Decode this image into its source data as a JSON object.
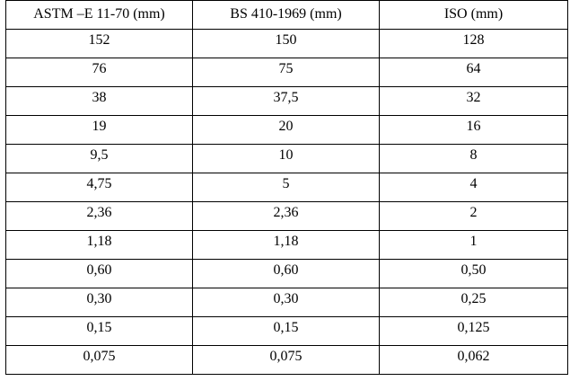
{
  "table": {
    "headers": [
      "ASTM –E 11-70 (mm)",
      "BS 410-1969 (mm)",
      "ISO (mm)"
    ],
    "rows": [
      [
        "152",
        "150",
        "128"
      ],
      [
        "76",
        "75",
        "64"
      ],
      [
        "38",
        "37,5",
        "32"
      ],
      [
        "19",
        "20",
        "16"
      ],
      [
        "9,5",
        "10",
        "8"
      ],
      [
        "4,75",
        "5",
        "4"
      ],
      [
        "2,36",
        "2,36",
        "2"
      ],
      [
        "1,18",
        "1,18",
        "1"
      ],
      [
        "0,60",
        "0,60",
        "0,50"
      ],
      [
        "0,30",
        "0,30",
        "0,25"
      ],
      [
        "0,15",
        "0,15",
        "0,125"
      ],
      [
        "0,075",
        "0,075",
        "0,062"
      ]
    ]
  }
}
